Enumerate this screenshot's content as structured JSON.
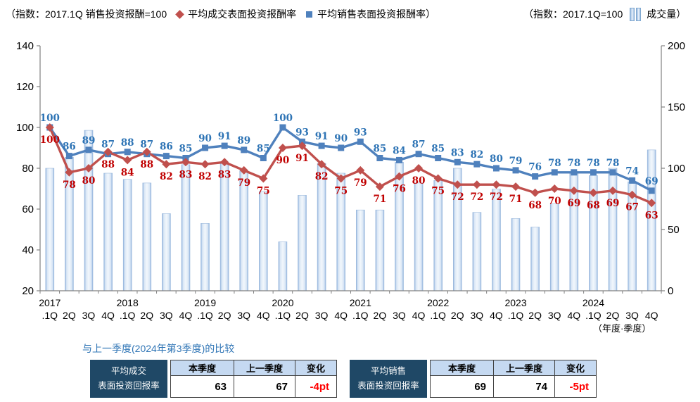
{
  "header": {
    "left_legend_prefix": "（指数：2017.1Q 销售投资报酬=100",
    "legend_transaction": "平均成交表面投资报酬率",
    "legend_sales": "平均销售表面投资报酬率）",
    "right_legend_prefix": "（指数：2017.1Q=100",
    "legend_volume": "成交量）"
  },
  "chart_data": {
    "type": "bar+line",
    "categories": [
      "2017.1Q",
      "2017.2Q",
      "2017.3Q",
      "2017.4Q",
      "2018.1Q",
      "2018.2Q",
      "2018.3Q",
      "2018.4Q",
      "2019.1Q",
      "2019.2Q",
      "2019.3Q",
      "2019.4Q",
      "2020.1Q",
      "2020.2Q",
      "2020.3Q",
      "2020.4Q",
      "2021.1Q",
      "2021.2Q",
      "2021.3Q",
      "2021.4Q",
      "2022.1Q",
      "2022.2Q",
      "2022.3Q",
      "2022.4Q",
      "2023.1Q",
      "2023.2Q",
      "2023.3Q",
      "2023.4Q",
      "2024.1Q",
      "2024.2Q",
      "2024.3Q",
      "2024.4Q"
    ],
    "x_axis": {
      "years": [
        "2017",
        "2018",
        "2019",
        "2020",
        "2021",
        "2022",
        "2023",
        "2024"
      ],
      "quarter_labels": [
        ".1Q",
        "2Q",
        "3Q",
        "4Q"
      ]
    },
    "left_axis": {
      "min": 20,
      "max": 140,
      "step": 20
    },
    "right_axis": {
      "min": 0,
      "max": 200,
      "step": 50
    },
    "series": [
      {
        "name": "平均成交表面投资报酬率",
        "id": "transaction-roi",
        "type": "line",
        "axis": "left",
        "color": "#C0504D",
        "label_color": "#C00000",
        "marker": "diamond",
        "values": [
          100,
          78,
          80,
          88,
          84,
          88,
          82,
          83,
          82,
          83,
          79,
          75,
          90,
          91,
          82,
          75,
          79,
          71,
          76,
          80,
          75,
          72,
          72,
          72,
          71,
          68,
          70,
          69,
          68,
          69,
          67,
          63
        ]
      },
      {
        "name": "平均销售表面投资报酬率",
        "id": "sales-roi",
        "type": "line",
        "axis": "left",
        "color": "#4F81BD",
        "label_color": "#2E74B5",
        "marker": "square",
        "values": [
          100,
          86,
          89,
          87,
          88,
          87,
          86,
          85,
          90,
          91,
          89,
          85,
          100,
          93,
          91,
          90,
          93,
          85,
          84,
          87,
          85,
          83,
          82,
          80,
          79,
          76,
          78,
          78,
          78,
          78,
          74,
          69
        ]
      },
      {
        "name": "成交量",
        "id": "volume",
        "type": "bar",
        "axis": "right",
        "color": "#A9C7E8",
        "values": [
          100,
          109,
          131,
          96,
          91,
          88,
          63,
          103,
          55,
          104,
          98,
          81,
          40,
          78,
          104,
          96,
          66,
          66,
          105,
          88,
          90,
          100,
          64,
          83,
          59,
          52,
          71,
          96,
          94,
          100,
          89,
          115
        ]
      }
    ],
    "axis_note": "（年度·季度）"
  },
  "comparison": {
    "title": "与上一季度(2024年第3季度)的比较",
    "col_headers": [
      "本季度",
      "上一季度",
      "变化"
    ],
    "tables": [
      {
        "label_line1": "平均成交",
        "label_line2": "表面投资回报率",
        "current": "63",
        "previous": "67",
        "change": "-4pt"
      },
      {
        "label_line1": "平均销售",
        "label_line2": "表面投资回报率",
        "current": "69",
        "previous": "74",
        "change": "-5pt"
      }
    ]
  },
  "colors": {
    "transaction_line": "#C0504D",
    "sales_line": "#4F81BD",
    "transaction_label": "#C00000",
    "sales_label": "#2E74B5",
    "bar_fill": "#A9C7E8",
    "table_header_bg": "#1F4866",
    "table_col_bg": "#C5D9F1",
    "change_text": "#FF0000",
    "axis": "#808080"
  }
}
